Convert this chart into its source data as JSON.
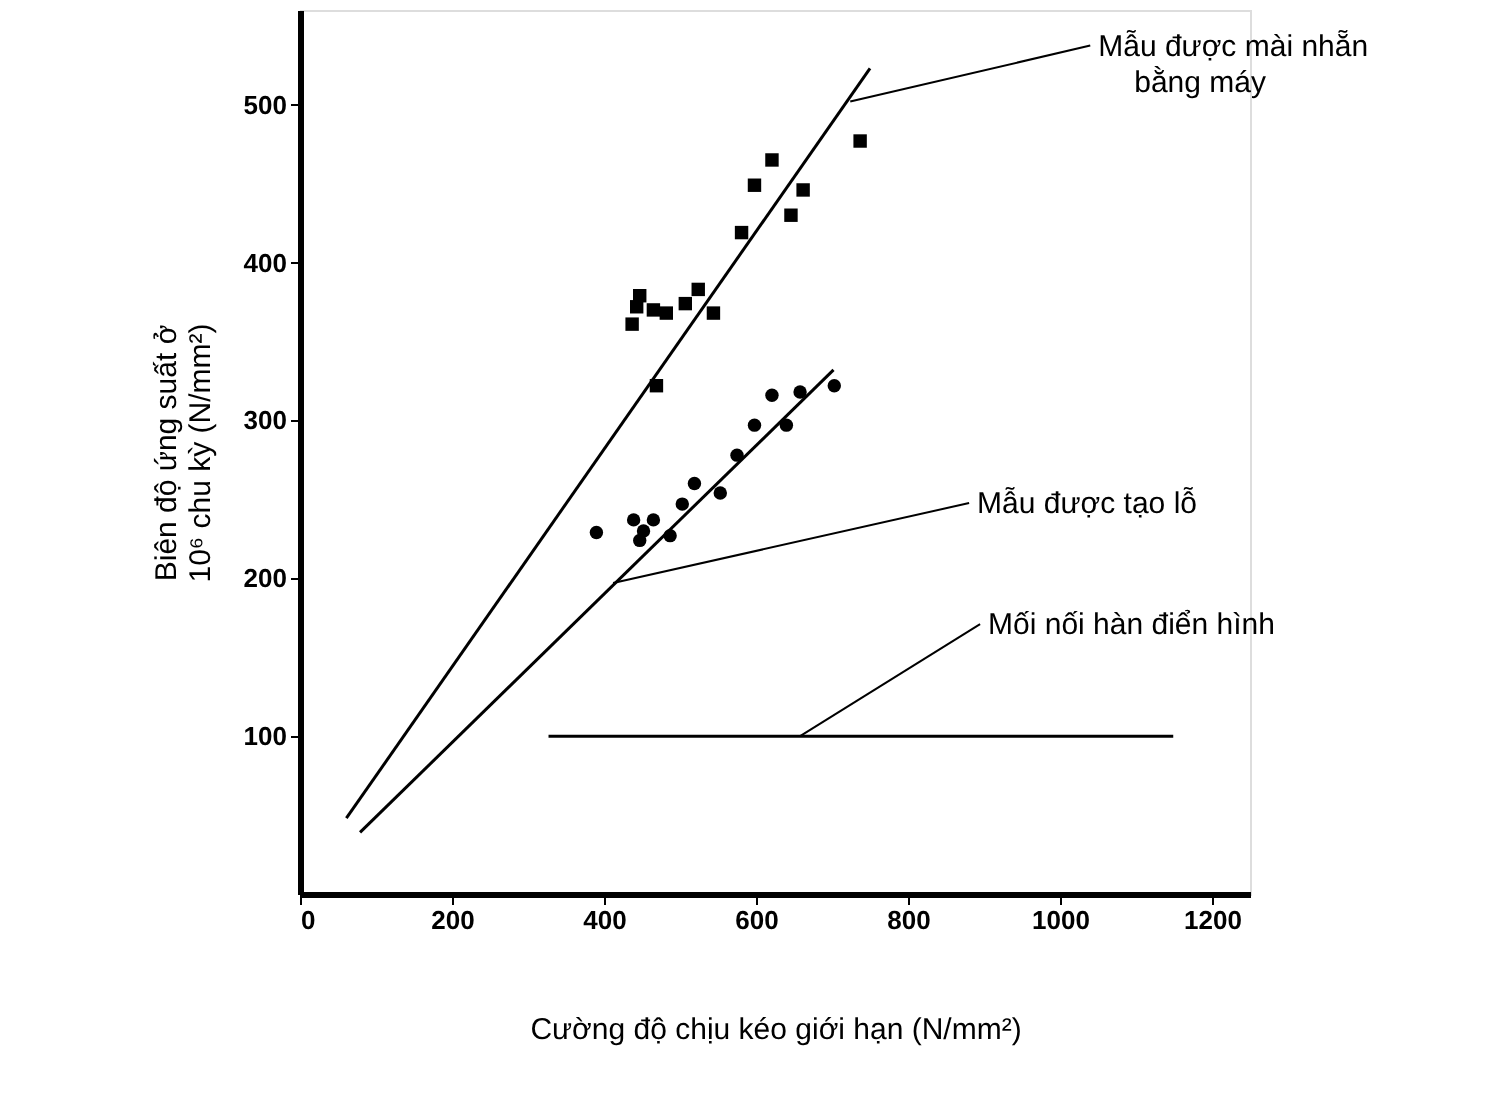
{
  "chart_data": {
    "type": "scatter",
    "xlabel": "Cường độ chịu kéo giới hạn (N/mm²)",
    "ylabel": "Biên độ ứng suất ở\n10⁶ chu kỳ (N/mm²)",
    "xlim": [
      0,
      1250
    ],
    "ylim": [
      0,
      560
    ],
    "xticks": [
      0,
      200,
      400,
      600,
      800,
      1000,
      1200
    ],
    "yticks": [
      100,
      200,
      300,
      400,
      500
    ],
    "grid": false,
    "series": [
      {
        "marker": "square",
        "color": "#000000",
        "x": [
          621,
          598,
          662,
          646,
          581,
          447,
          443,
          465,
          482,
          437,
          507,
          524,
          544,
          469,
          737
        ],
        "values": [
          465,
          449,
          446,
          430,
          419,
          379,
          372,
          370,
          368,
          361,
          374,
          383,
          368,
          322,
          477
        ]
      },
      {
        "marker": "circle",
        "color": "#000000",
        "x": [
          390,
          439,
          465,
          452,
          447,
          487,
          503,
          519,
          553,
          575,
          598,
          621,
          640,
          658,
          703
        ],
        "values": [
          229,
          237,
          237,
          230,
          224,
          227,
          247,
          260,
          254,
          278,
          297,
          316,
          297,
          318,
          322
        ]
      },
      {
        "type": "line",
        "marker": "none",
        "color": "#000000",
        "x": [
          61,
          750
        ],
        "values": [
          48,
          523
        ]
      },
      {
        "type": "line",
        "marker": "none",
        "color": "#000000",
        "x": [
          79,
          702
        ],
        "values": [
          39,
          332
        ]
      },
      {
        "type": "line",
        "marker": "none",
        "color": "#000000",
        "x": [
          327,
          1149
        ],
        "values": [
          100,
          100
        ]
      }
    ],
    "annotations": [
      {
        "text": "Mẫu được mài nhẵn\nbằng máy",
        "x": 724,
        "y": 502
      },
      {
        "text": "Mẫu được tạo lỗ",
        "x": 412,
        "y": 197
      },
      {
        "text": "Mối nối hàn điển hình",
        "x": 658,
        "y": 100
      }
    ]
  }
}
